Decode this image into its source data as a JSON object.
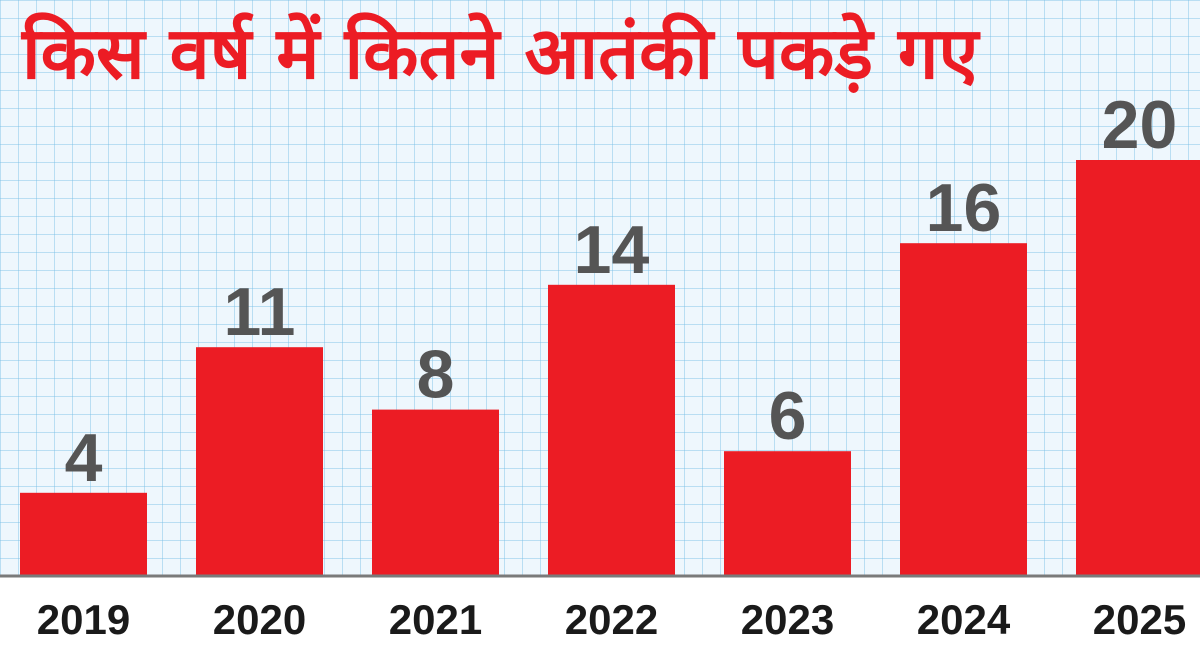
{
  "chart_data": {
    "type": "bar",
    "title": "किस वर्ष में कितने आतंकी पकड़े गए",
    "categories": [
      "2019",
      "2020",
      "2021",
      "2022",
      "2023",
      "2024",
      "2025"
    ],
    "values": [
      4,
      11,
      8,
      14,
      6,
      16,
      20
    ],
    "data_labels": [
      "4",
      "11",
      "8",
      "14",
      "6",
      "16",
      "20"
    ],
    "xlabel": "",
    "ylabel": "",
    "ylim": [
      0,
      20
    ],
    "grid": true,
    "legend": "none",
    "colors": {
      "bar": "#ec1c24",
      "title": "#ec1c24",
      "value_label": "#555555",
      "tick_label": "#1a1a1a",
      "axis": "#7a7a7a",
      "grid": "#9fd0ef",
      "background": "#eef7fd",
      "tick_band": "#ffffff"
    }
  }
}
